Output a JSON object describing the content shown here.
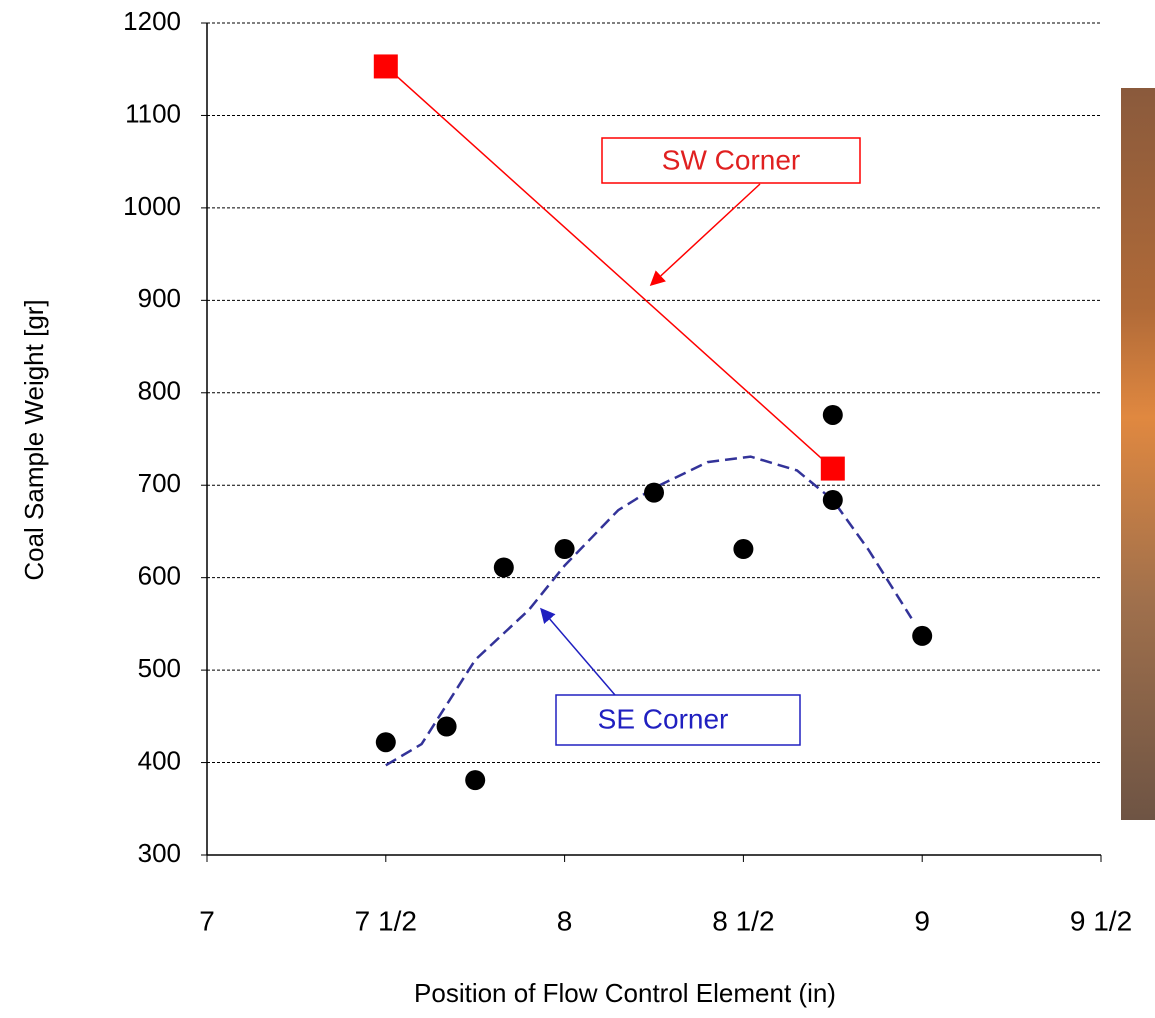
{
  "chart_data": {
    "type": "scatter",
    "xlabel": "Position of Flow Control Element (in)",
    "ylabel": "Coal Sample Weight [gr]",
    "xlim": [
      7,
      9.5
    ],
    "ylim": [
      300,
      1200
    ],
    "xticks": [
      7,
      {
        "value": 7.5,
        "label": "7 1/2"
      },
      8,
      {
        "value": 8.5,
        "label": "8 1/2"
      },
      9,
      {
        "value": 9.5,
        "label": "9 1/2"
      }
    ],
    "yticks": [
      300,
      400,
      500,
      600,
      700,
      800,
      900,
      1000,
      1100,
      1200
    ],
    "grid": true,
    "series": [
      {
        "name": "SW Corner",
        "color": "#ff0000",
        "marker": "square",
        "connect": true,
        "x": [
          7.5,
          8.75
        ],
        "values": [
          1153,
          718
        ]
      },
      {
        "name": "SE Corner",
        "color": "#000000",
        "marker": "circle",
        "connect": false,
        "x": [
          7.5,
          7.67,
          7.75,
          7.83,
          8.0,
          8.25,
          8.5,
          8.75,
          8.75,
          9.0
        ],
        "values": [
          422,
          439,
          381,
          611,
          631,
          692,
          631,
          776,
          684,
          537
        ]
      }
    ],
    "fit": {
      "color": "#333399",
      "dash": true,
      "x": [
        7.5,
        7.6,
        7.75,
        7.9,
        8.0,
        8.15,
        8.25,
        8.4,
        8.52,
        8.65,
        8.75,
        8.85,
        8.97
      ],
      "values": [
        397,
        420,
        511,
        565,
        613,
        673,
        697,
        725,
        731,
        716,
        684,
        630,
        556
      ]
    }
  }
}
